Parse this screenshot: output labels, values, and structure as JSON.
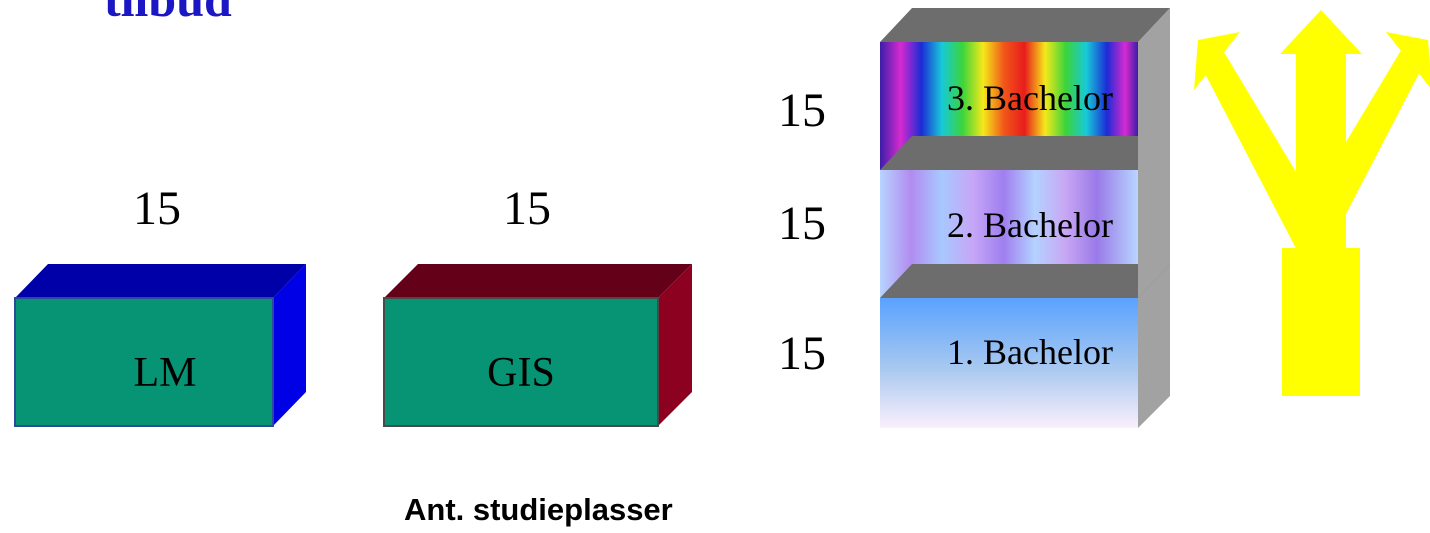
{
  "title": "tilbud",
  "counts": {
    "lm": "15",
    "gis": "15",
    "bachelor3": "15",
    "bachelor2": "15",
    "bachelor1": "15"
  },
  "boxes": {
    "lm": "LM",
    "gis": "GIS"
  },
  "bachelor": {
    "year3": "3. Bachelor",
    "year2": "2. Bachelor",
    "year1": "1. Bachelor"
  },
  "caption": "Ant. studieplasser",
  "colors": {
    "title": "#1b17c4",
    "box_face": "#079474",
    "lm_side": "#0000e6",
    "gis_side": "#8c0020",
    "arrow": "#ffff00"
  },
  "icons": [
    "three-way-arrow-icon"
  ]
}
